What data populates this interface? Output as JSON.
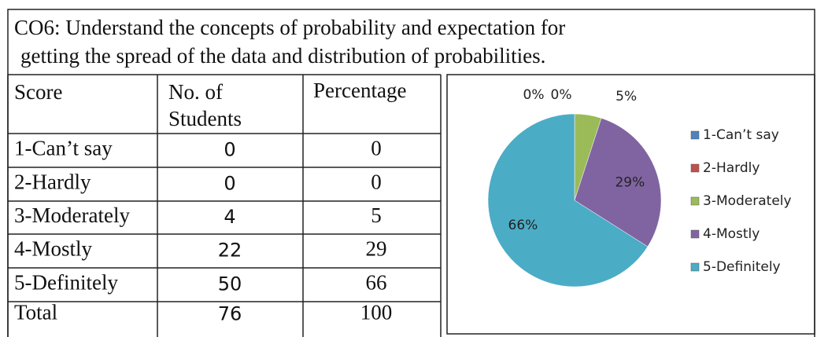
{
  "title": [
    "CO6: Understand the concepts of probability and expectation for",
    "getting the spread of the data and distribution of probabilities."
  ],
  "table": {
    "header": [
      "Score",
      "No. of Students",
      "Percentage"
    ],
    "rows": [
      [
        "1-Can’t say",
        0,
        0
      ],
      [
        "2-Hardly",
        0,
        0
      ],
      [
        "3-Moderately",
        4,
        5
      ],
      [
        "4-Mostly",
        22,
        29
      ],
      [
        "5-Definitely",
        50,
        66
      ],
      [
        "Total",
        76,
        100
      ]
    ]
  },
  "chart_data": {
    "type": "pie",
    "categories": [
      "1-Can’t say",
      "2-Hardly",
      "3-Moderately",
      "4-Mostly",
      "5-Definitely"
    ],
    "values": [
      0,
      0,
      5,
      29,
      66
    ],
    "value_labels": [
      "0%",
      "0%",
      "5%",
      "29%",
      "66%"
    ],
    "colors": [
      "#4f81bd",
      "#c0504d",
      "#9bbb59",
      "#8064a2",
      "#4bacc6"
    ],
    "legend": "right"
  }
}
